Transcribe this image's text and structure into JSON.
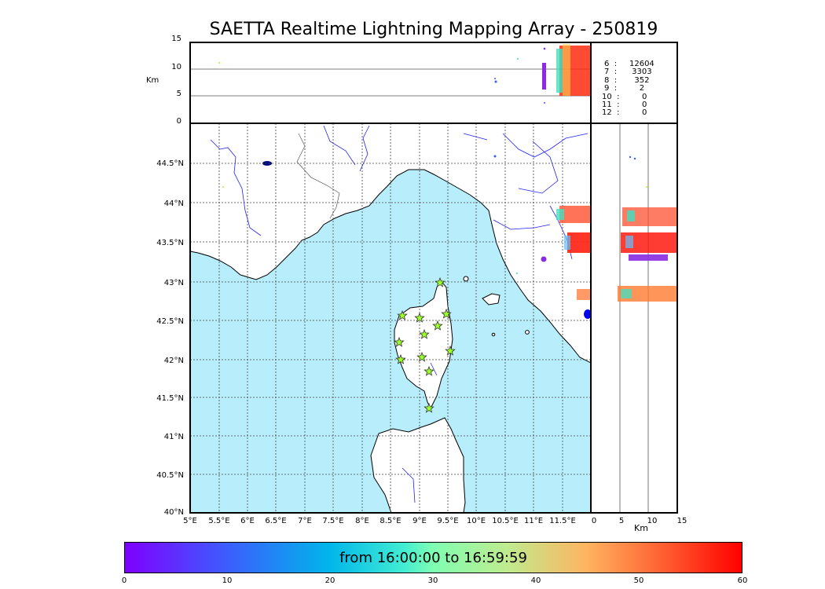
{
  "title": "SAETTA Realtime Lightning Mapping Array - 250819",
  "top_panel": {
    "ylabel": "Km",
    "yticks": [
      "15",
      "10",
      "5",
      "0"
    ]
  },
  "map": {
    "lat_labels": [
      "44.5°N",
      "44°N",
      "43.5°N",
      "43°N",
      "42.5°N",
      "42°N",
      "41.5°N",
      "41°N",
      "40.5°N",
      "40°N"
    ],
    "lon_labels": [
      "5°E",
      "5.5°E",
      "6°E",
      "6.5°E",
      "7°E",
      "7.5°E",
      "8°E",
      "8.5°E",
      "9°E",
      "9.5°E",
      "10°E",
      "10.5°E",
      "11°E",
      "11.5°E"
    ],
    "sea_color": "#b8eefc",
    "land_color": "#ffffff",
    "river_color": "#2020ff",
    "station_marker": "star",
    "station_color": "#9aff2a",
    "stations_count": 12
  },
  "side_panel": {
    "xticks": [
      "0",
      "5",
      "10",
      "15"
    ],
    "xlabel": "Km"
  },
  "station_counts": [
    {
      "label": "6  :     12604",
      "highlight": true
    },
    {
      "label": "7  :      3303",
      "highlight": false
    },
    {
      "label": "8  :       352",
      "highlight": false
    },
    {
      "label": "9  :         2",
      "highlight": false
    },
    {
      "label": "10  :         0",
      "highlight": false
    },
    {
      "label": "11  :         0",
      "highlight": false
    },
    {
      "label": "12  :         0",
      "highlight": false
    }
  ],
  "colorbar": {
    "caption": "from 16:00:00 to 16:59:59",
    "ticks": [
      "0",
      "10",
      "20",
      "30",
      "40",
      "50",
      "60"
    ],
    "min": 0,
    "max": 60
  },
  "colors": {
    "highlight_count": "#ff0000"
  }
}
